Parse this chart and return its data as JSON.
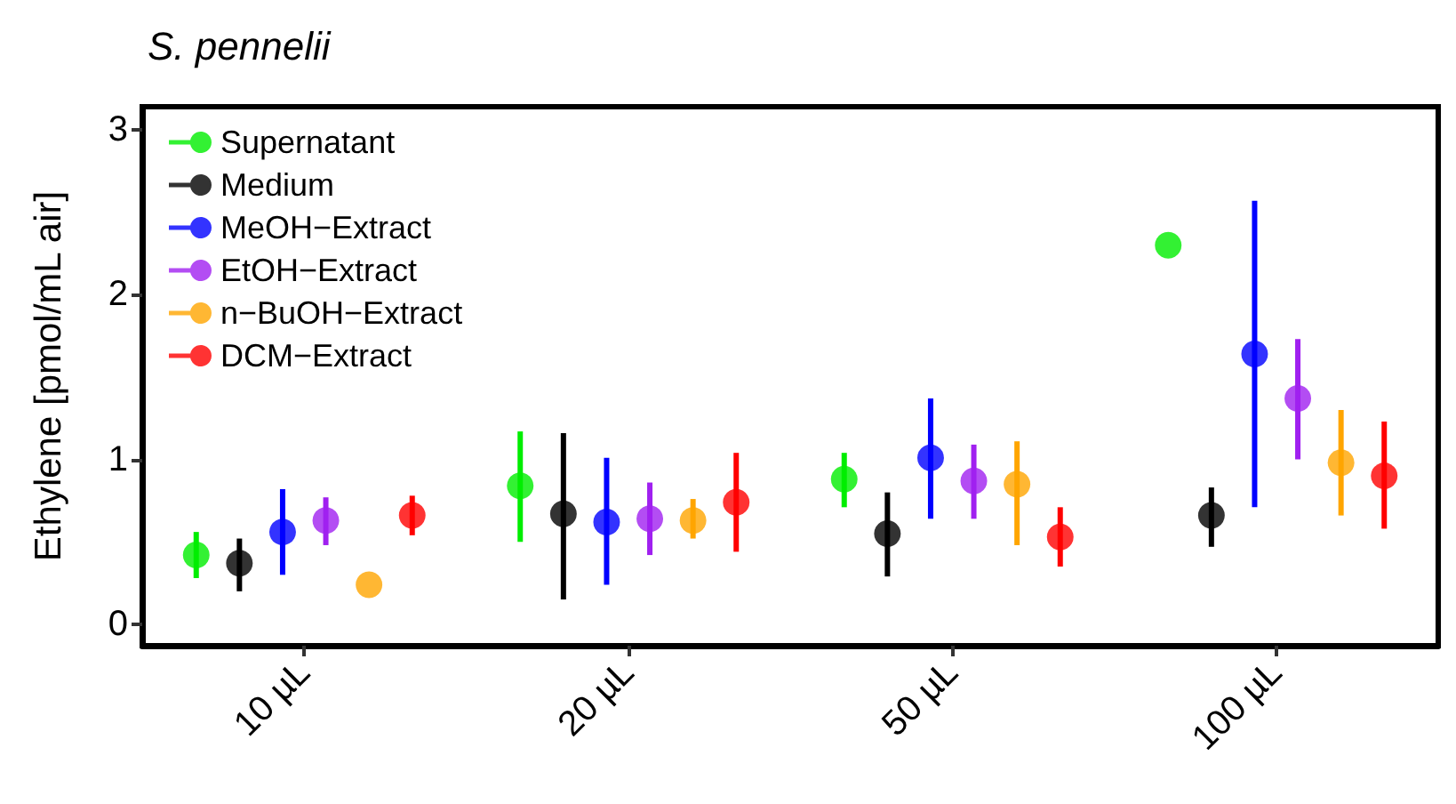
{
  "chart_data": {
    "type": "scatter",
    "title": "S. pennelii",
    "ylabel": "Ethylene [pmol/mL air]",
    "categories": [
      "10 µL",
      "20 µL",
      "50 µL",
      "100 µL"
    ],
    "series": [
      {
        "name": "Supernatant",
        "color": "#00ee00",
        "values": [
          0.42,
          0.84,
          0.88,
          2.3
        ],
        "errors": [
          [
            0.28,
            0.56
          ],
          [
            0.5,
            1.17
          ],
          [
            0.71,
            1.04
          ],
          null
        ]
      },
      {
        "name": "Medium",
        "color": "#000000",
        "values": [
          0.37,
          0.67,
          0.55,
          0.66
        ],
        "errors": [
          [
            0.2,
            0.52
          ],
          [
            0.15,
            1.16
          ],
          [
            0.29,
            0.8
          ],
          [
            0.47,
            0.83
          ]
        ]
      },
      {
        "name": "MeOH−Extract",
        "color": "#0000ff",
        "values": [
          0.56,
          0.62,
          1.01,
          1.64
        ],
        "errors": [
          [
            0.3,
            0.82
          ],
          [
            0.24,
            1.01
          ],
          [
            0.64,
            1.37
          ],
          [
            0.71,
            2.57
          ]
        ]
      },
      {
        "name": "EtOH−Extract",
        "color": "#a020f0",
        "values": [
          0.63,
          0.64,
          0.87,
          1.37
        ],
        "errors": [
          [
            0.48,
            0.77
          ],
          [
            0.42,
            0.86
          ],
          [
            0.64,
            1.09
          ],
          [
            1.0,
            1.73
          ]
        ]
      },
      {
        "name": "n−BuOH−Extract",
        "color": "#ffa500",
        "values": [
          0.24,
          0.63,
          0.85,
          0.98
        ],
        "errors": [
          null,
          [
            0.52,
            0.76
          ],
          [
            0.48,
            1.11
          ],
          [
            0.66,
            1.3
          ]
        ]
      },
      {
        "name": "DCM−Extract",
        "color": "#ff0000",
        "values": [
          0.66,
          0.74,
          0.53,
          0.9
        ],
        "errors": [
          [
            0.54,
            0.78
          ],
          [
            0.44,
            1.04
          ],
          [
            0.35,
            0.71
          ],
          [
            0.58,
            1.23
          ]
        ]
      }
    ],
    "ylim": [
      -0.13,
      3.14
    ],
    "yticks": [
      0,
      1,
      2,
      3
    ],
    "grid": false,
    "legend": "top left",
    "marker": "circle"
  }
}
